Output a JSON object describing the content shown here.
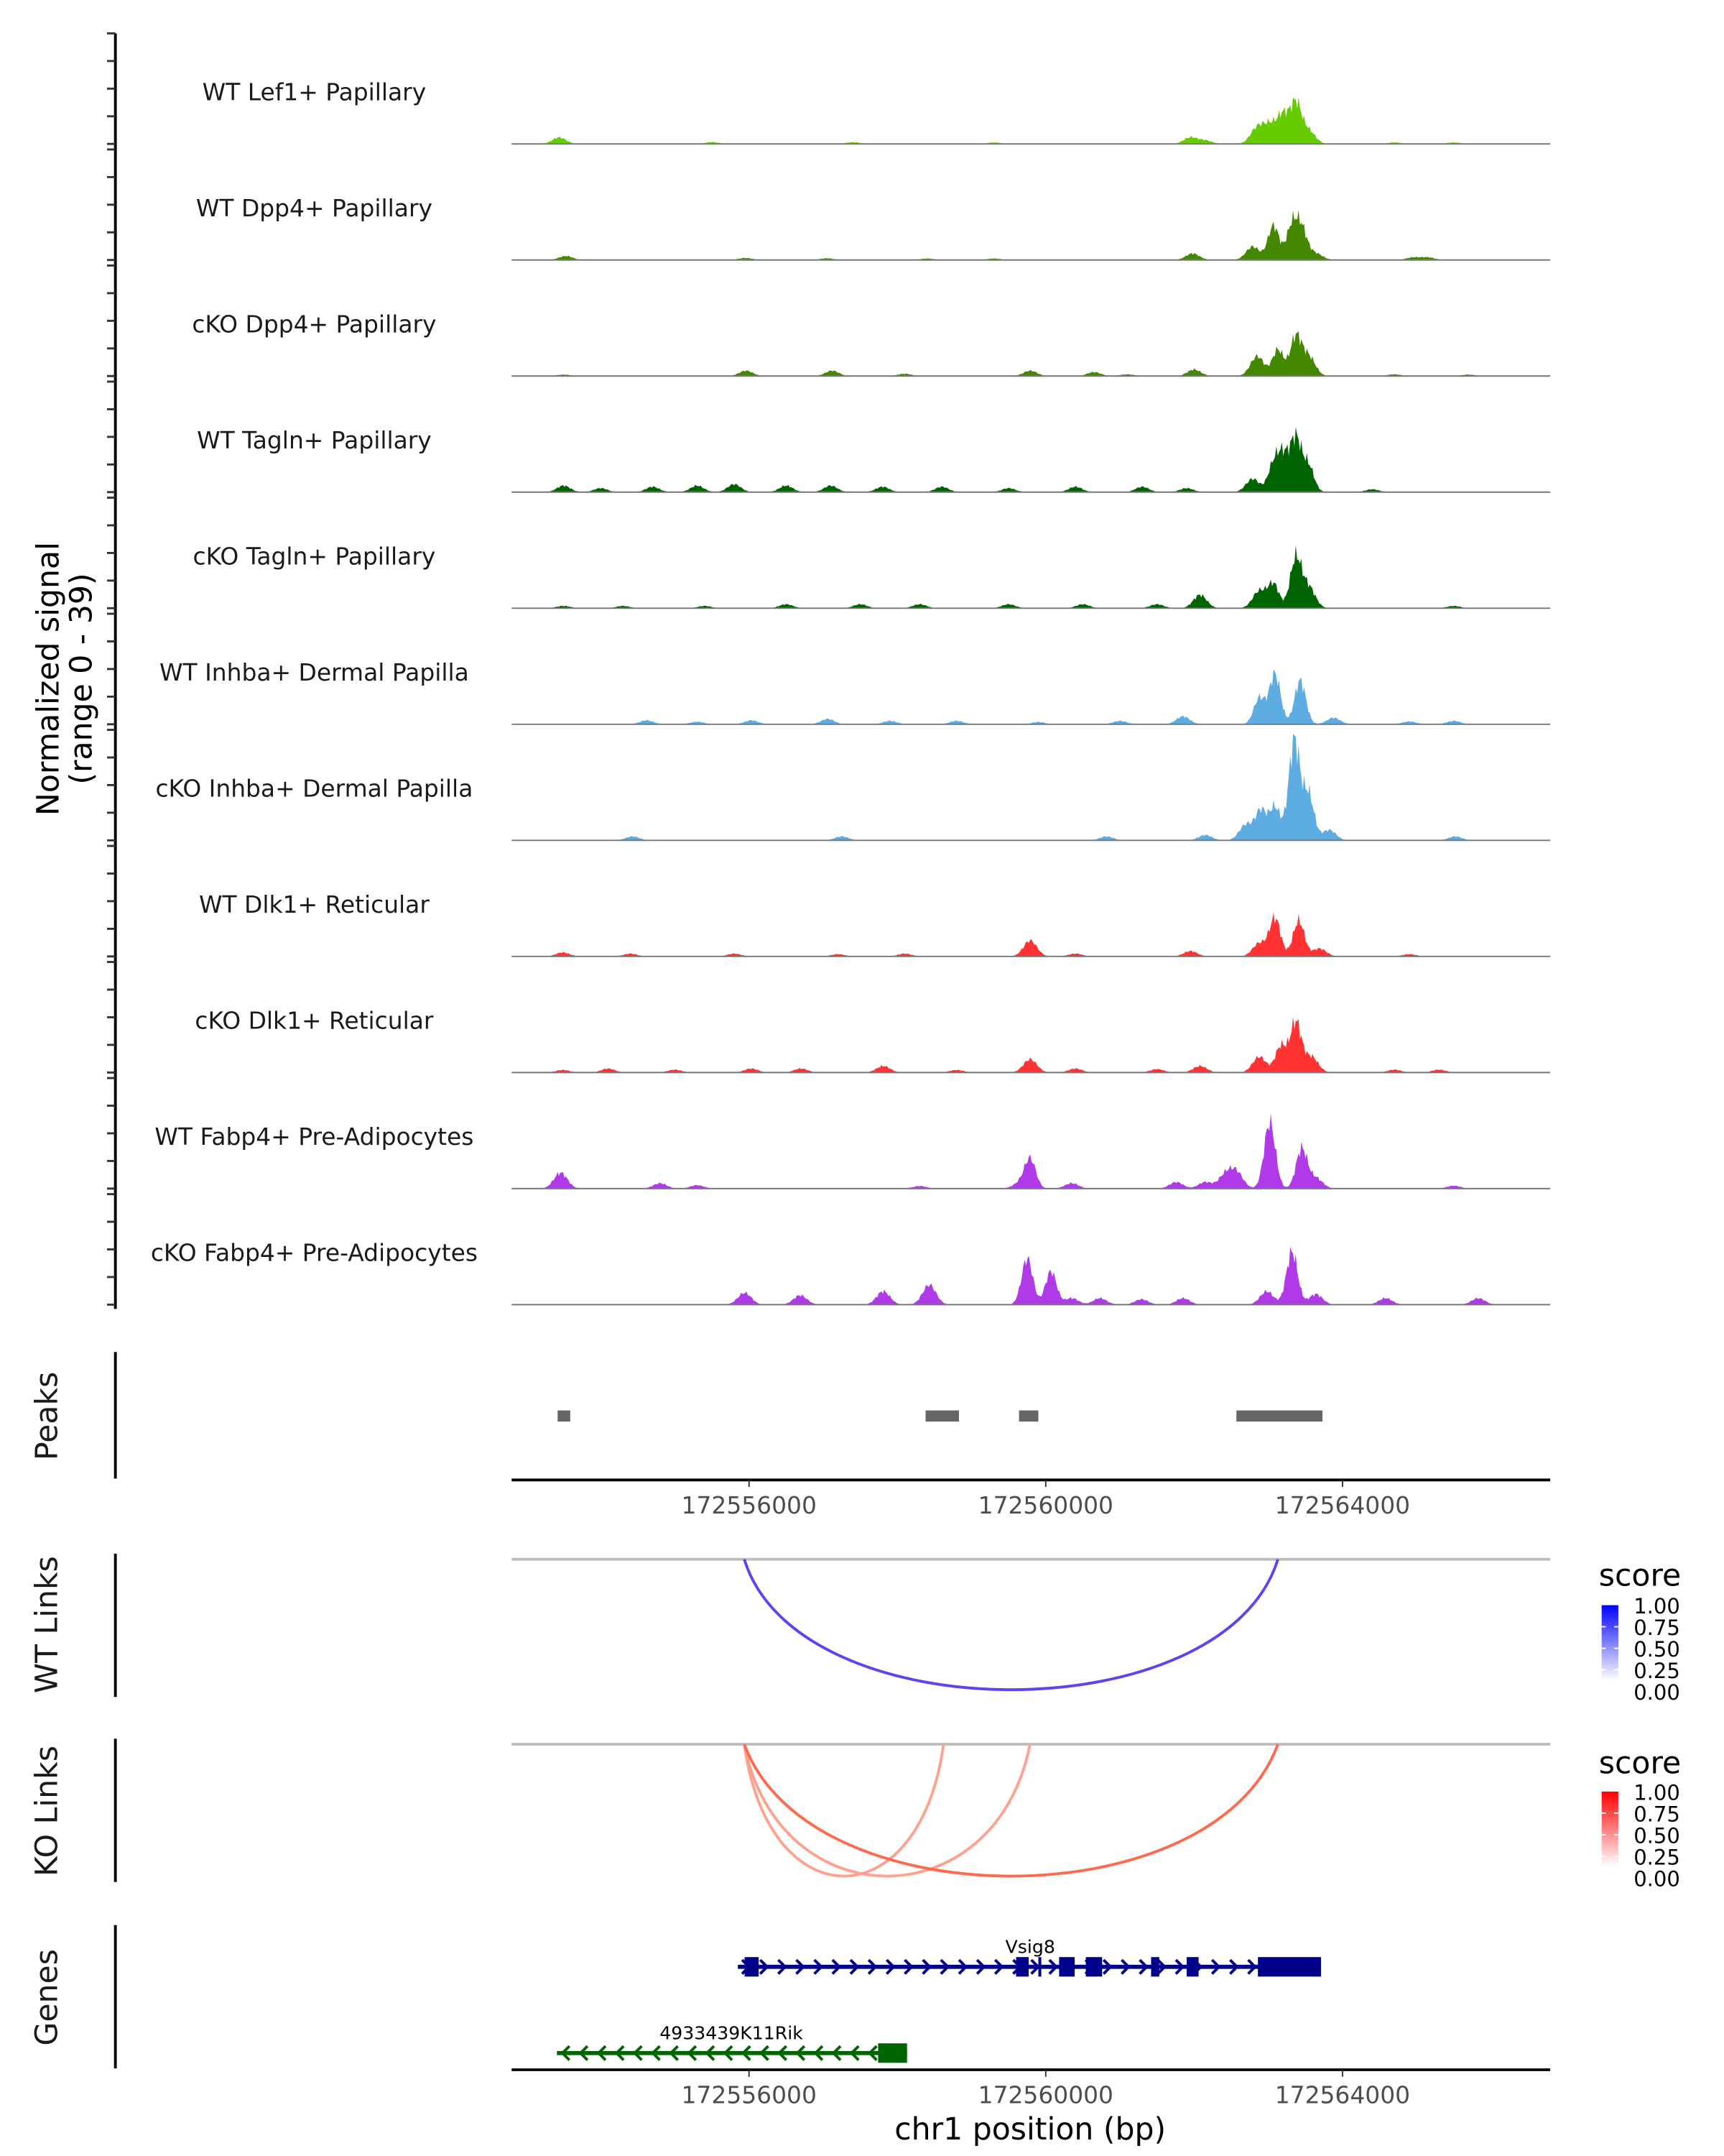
{
  "chart_data": {
    "type": "area",
    "title": "",
    "region": {
      "chromosome": "chr1",
      "start": 172552800,
      "end": 172566800
    },
    "xlabel": "chr1 position (bp)",
    "x_ticks": [
      172556000,
      172560000,
      172564000
    ],
    "x_tick_labels": [
      "172556000",
      "172560000",
      "172564000"
    ],
    "coverage": {
      "ylabel_line1": "Normalized signal",
      "ylabel_line2": "(range 0 - 39)",
      "ylim": [
        0,
        39
      ],
      "tracks": [
        {
          "name": "WT Lef1+ Papillary",
          "color": "#66CC00",
          "peaks": [
            [
              172553440,
              2.3
            ],
            [
              172555500,
              0.6
            ],
            [
              172557400,
              0.6
            ],
            [
              172559300,
              0.5
            ],
            [
              172561950,
              2.3
            ],
            [
              172562150,
              1.2
            ],
            [
              172562850,
              5.6
            ],
            [
              172563030,
              6.5
            ],
            [
              172563200,
              9.3
            ],
            [
              172563370,
              14.0
            ],
            [
              172563540,
              4.7
            ],
            [
              172564700,
              0.5
            ],
            [
              172565500,
              0.5
            ]
          ]
        },
        {
          "name": "WT Dpp4+ Papillary",
          "color": "#448800",
          "peaks": [
            [
              172553530,
              1.4
            ],
            [
              172555950,
              0.7
            ],
            [
              172557050,
              0.6
            ],
            [
              172558400,
              0.5
            ],
            [
              172559300,
              0.5
            ],
            [
              172561980,
              2.3
            ],
            [
              172562790,
              4.7
            ],
            [
              172563070,
              12.1
            ],
            [
              172563320,
              11.7
            ],
            [
              172563450,
              10.3
            ],
            [
              172563640,
              2.3
            ],
            [
              172564950,
              0.9
            ],
            [
              172565150,
              0.9
            ]
          ]
        },
        {
          "name": "cKO Dpp4+ Papillary",
          "color": "#448800",
          "peaks": [
            [
              172553500,
              0.5
            ],
            [
              172555960,
              1.9
            ],
            [
              172557120,
              1.9
            ],
            [
              172558100,
              0.8
            ],
            [
              172559790,
              1.9
            ],
            [
              172560650,
              1.4
            ],
            [
              172561100,
              0.6
            ],
            [
              172562000,
              2.3
            ],
            [
              172562850,
              7.0
            ],
            [
              172563130,
              9.3
            ],
            [
              172563370,
              13.5
            ],
            [
              172563540,
              7.0
            ],
            [
              172564700,
              0.6
            ],
            [
              172565700,
              0.5
            ]
          ]
        },
        {
          "name": "WT Tagln+ Papillary",
          "color": "#006400",
          "peaks": [
            [
              172553500,
              2.3
            ],
            [
              172554000,
              1.4
            ],
            [
              172554700,
              1.9
            ],
            [
              172555300,
              2.3
            ],
            [
              172555800,
              2.8
            ],
            [
              172556500,
              2.3
            ],
            [
              172557100,
              2.3
            ],
            [
              172557800,
              1.9
            ],
            [
              172558600,
              1.9
            ],
            [
              172559500,
              1.4
            ],
            [
              172560400,
              1.9
            ],
            [
              172561300,
              1.9
            ],
            [
              172561900,
              1.4
            ],
            [
              172562790,
              4.7
            ],
            [
              172563070,
              9.3
            ],
            [
              172563200,
              11.7
            ],
            [
              172563370,
              18.7
            ],
            [
              172563540,
              9.3
            ],
            [
              172564400,
              1.0
            ]
          ]
        },
        {
          "name": "cKO Tagln+ Papillary",
          "color": "#006400",
          "peaks": [
            [
              172553500,
              0.8
            ],
            [
              172554300,
              0.8
            ],
            [
              172555400,
              0.8
            ],
            [
              172556500,
              1.4
            ],
            [
              172557500,
              1.4
            ],
            [
              172558300,
              1.4
            ],
            [
              172559500,
              1.4
            ],
            [
              172560500,
              1.4
            ],
            [
              172561500,
              1.4
            ],
            [
              172562080,
              4.7
            ],
            [
              172562880,
              6.1
            ],
            [
              172563070,
              8.4
            ],
            [
              172563370,
              17.3
            ],
            [
              172563540,
              7.5
            ],
            [
              172565500,
              0.8
            ]
          ]
        },
        {
          "name": "WT Inhba+ Dermal Papilla",
          "color": "#5DADE2",
          "peaks": [
            [
              172554620,
              1.4
            ],
            [
              172555300,
              0.9
            ],
            [
              172556030,
              1.4
            ],
            [
              172557060,
              1.9
            ],
            [
              172557900,
              1.2
            ],
            [
              172558800,
              1.2
            ],
            [
              172559900,
              0.8
            ],
            [
              172561000,
              1.2
            ],
            [
              172561850,
              2.8
            ],
            [
              172562880,
              9.3
            ],
            [
              172563090,
              17.7
            ],
            [
              172563430,
              15.4
            ],
            [
              172563880,
              2.3
            ],
            [
              172564900,
              1.0
            ],
            [
              172565500,
              1.2
            ]
          ]
        },
        {
          "name": "cKO Inhba+ Dermal Papilla",
          "color": "#5DADE2",
          "peaks": [
            [
              172554430,
              1.4
            ],
            [
              172557250,
              1.4
            ],
            [
              172560820,
              1.4
            ],
            [
              172562150,
              1.9
            ],
            [
              172562700,
              5.6
            ],
            [
              172562900,
              10.3
            ],
            [
              172563090,
              11.7
            ],
            [
              172563350,
              35.0
            ],
            [
              172563540,
              16.3
            ],
            [
              172563820,
              3.7
            ],
            [
              172565520,
              1.4
            ]
          ]
        },
        {
          "name": "WT Dlk1+ Reticular",
          "color": "#FF3333",
          "peaks": [
            [
              172553490,
              1.4
            ],
            [
              172554400,
              1.0
            ],
            [
              172555800,
              1.0
            ],
            [
              172557200,
              0.8
            ],
            [
              172558100,
              1.0
            ],
            [
              172559790,
              5.6
            ],
            [
              172560400,
              1.0
            ],
            [
              172561950,
              1.9
            ],
            [
              172562880,
              4.7
            ],
            [
              172563090,
              13.5
            ],
            [
              172563410,
              12.6
            ],
            [
              172563690,
              2.8
            ],
            [
              172564900,
              0.8
            ]
          ]
        },
        {
          "name": "cKO Dlk1+ Reticular",
          "color": "#FF3333",
          "peaks": [
            [
              172553490,
              0.9
            ],
            [
              172554100,
              1.4
            ],
            [
              172555000,
              1.0
            ],
            [
              172556030,
              1.4
            ],
            [
              172556700,
              1.4
            ],
            [
              172557810,
              2.3
            ],
            [
              172558800,
              0.9
            ],
            [
              172559790,
              4.7
            ],
            [
              172560400,
              1.4
            ],
            [
              172561500,
              1.2
            ],
            [
              172562080,
              2.3
            ],
            [
              172562880,
              5.6
            ],
            [
              172563170,
              9.3
            ],
            [
              172563370,
              17.7
            ],
            [
              172563580,
              5.6
            ],
            [
              172564700,
              1.0
            ],
            [
              172565300,
              1.0
            ]
          ]
        },
        {
          "name": "WT Fabp4+ Pre-Adipocytes",
          "color": "#B03AE8",
          "peaks": [
            [
              172553460,
              5.6
            ],
            [
              172554800,
              1.9
            ],
            [
              172555300,
              1.2
            ],
            [
              172558300,
              0.9
            ],
            [
              172559650,
              1.9
            ],
            [
              172559790,
              10.3
            ],
            [
              172560350,
              1.9
            ],
            [
              172561760,
              2.3
            ],
            [
              172562150,
              2.3
            ],
            [
              172562420,
              4.7
            ],
            [
              172562570,
              5.6
            ],
            [
              172563020,
              23.4
            ],
            [
              172563450,
              14.0
            ],
            [
              172563640,
              3.7
            ],
            [
              172565500,
              1.0
            ]
          ]
        },
        {
          "name": "cKO Fabp4+ Pre-Adipocytes",
          "color": "#B03AE8",
          "peaks": [
            [
              172555940,
              4.2
            ],
            [
              172556690,
              3.3
            ],
            [
              172557810,
              4.7
            ],
            [
              172558430,
              7.0
            ],
            [
              172559750,
              16.3
            ],
            [
              172560070,
              11.7
            ],
            [
              172560350,
              2.3
            ],
            [
              172560730,
              2.3
            ],
            [
              172561290,
              1.9
            ],
            [
              172561850,
              2.3
            ],
            [
              172562980,
              4.7
            ],
            [
              172563320,
              18.7
            ],
            [
              172563640,
              3.7
            ],
            [
              172564580,
              2.3
            ],
            [
              172565830,
              2.3
            ]
          ]
        }
      ]
    },
    "peaks_track": {
      "label": "Peaks",
      "color": "#666666",
      "regions": [
        [
          172553420,
          172553590
        ],
        [
          172558380,
          172558830
        ],
        [
          172559640,
          172559900
        ],
        [
          172562570,
          172563730
        ]
      ]
    },
    "wt_links": {
      "label": "WT Links",
      "links": [
        {
          "start": 172555936,
          "end": 172563129,
          "score": 0.75
        }
      ]
    },
    "ko_links": {
      "label": "KO Links",
      "links": [
        {
          "start": 172555936,
          "end": 172558622,
          "score": 0.25
        },
        {
          "start": 172555936,
          "end": 172559787,
          "score": 0.25
        },
        {
          "start": 172555936,
          "end": 172563129,
          "score": 0.65
        }
      ]
    },
    "legends": [
      {
        "title": "score",
        "low_color": "#FFFFFF",
        "high_color": "#0000FF",
        "ticks": [
          "1.00",
          "0.75",
          "0.50",
          "0.25",
          "0.00"
        ]
      },
      {
        "title": "score",
        "low_color": "#FFFFFF",
        "high_color": "#FF0000",
        "ticks": [
          "1.00",
          "0.75",
          "0.50",
          "0.25",
          "0.00"
        ]
      }
    ],
    "genes": {
      "label": "Genes",
      "items": [
        {
          "name": "Vsig8",
          "strand": "+",
          "color": "#00008B",
          "start": 172555850,
          "end": 172563710,
          "exons": [
            [
              172555940,
              172556130
            ],
            [
              172559600,
              172559770
            ],
            [
              172559900,
              172559940
            ],
            [
              172560180,
              172560390
            ],
            [
              172560540,
              172560760
            ],
            [
              172561420,
              172561530
            ],
            [
              172561900,
              172562060
            ],
            [
              172562860,
              172563710
            ]
          ]
        },
        {
          "name": "4933439K11Rik",
          "strand": "-",
          "color": "#006400",
          "start": 172553410,
          "end": 172558130,
          "exons": [
            [
              172557740,
              172558130
            ]
          ]
        }
      ]
    }
  }
}
